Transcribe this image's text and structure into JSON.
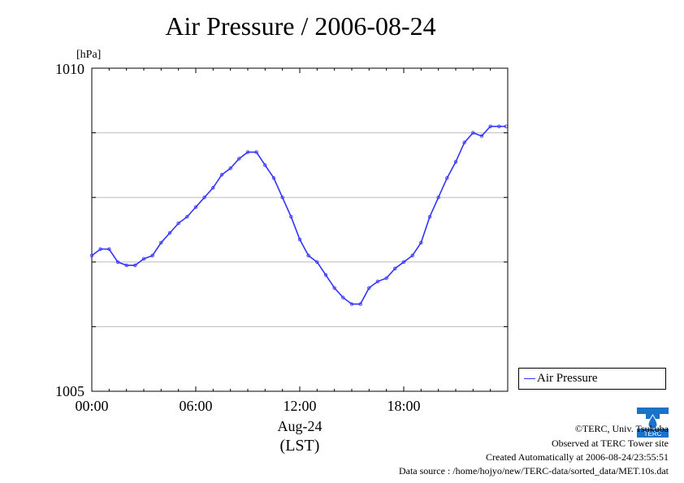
{
  "chart_data": {
    "type": "scatter",
    "title": "Air Pressure / 2006-08-24",
    "ylabel": "[hPa]",
    "xlabel": "Aug-24",
    "xlabel2": "(LST)",
    "ylim": [
      1005,
      1010
    ],
    "xlim_hours": [
      0,
      24
    ],
    "y_tick_labels": [
      "1010",
      "1005"
    ],
    "x_tick_labels": [
      "00:00",
      "06:00",
      "12:00",
      "18:00"
    ],
    "y_gridlines": [
      1006,
      1007,
      1008,
      1009
    ],
    "grid": "horizontal",
    "legend": {
      "position": "right",
      "entries": [
        "Air Pressure"
      ]
    },
    "series": [
      {
        "name": "Air Pressure",
        "color": "#3333ff",
        "x": [
          0,
          0.5,
          1,
          1.5,
          2,
          2.5,
          3,
          3.5,
          4,
          4.5,
          5,
          5.5,
          6,
          6.5,
          7,
          7.5,
          8,
          8.5,
          9,
          9.5,
          10,
          10.5,
          11,
          11.5,
          12,
          12.5,
          13,
          13.5,
          14,
          14.5,
          15,
          15.5,
          16,
          16.5,
          17,
          17.5,
          18,
          18.5,
          19,
          19.5,
          20,
          20.5,
          21,
          21.5,
          22,
          22.5,
          23,
          23.5,
          23.9
        ],
        "y": [
          1007.1,
          1007.2,
          1007.2,
          1007.0,
          1006.95,
          1006.95,
          1007.05,
          1007.1,
          1007.3,
          1007.45,
          1007.6,
          1007.7,
          1007.85,
          1008.0,
          1008.15,
          1008.35,
          1008.45,
          1008.6,
          1008.7,
          1008.7,
          1008.5,
          1008.3,
          1008.0,
          1007.7,
          1007.35,
          1007.1,
          1007.0,
          1006.8,
          1006.6,
          1006.45,
          1006.35,
          1006.35,
          1006.6,
          1006.7,
          1006.75,
          1006.9,
          1007.0,
          1007.1,
          1007.3,
          1007.7,
          1008.0,
          1008.3,
          1008.55,
          1008.85,
          1009.0,
          1008.95,
          1009.1,
          1009.1,
          1009.1
        ]
      }
    ]
  },
  "footer": {
    "copyright": "©TERC, Univ. Tsukuba",
    "observed": "Observed at TERC Tower site",
    "created": "Created Automatically at 2006-08-24/23:55:51",
    "source": "Data source : /home/hojyo/new/TERC-data/sorted_data/MET.10s.dat"
  },
  "logo_text": "TERC"
}
